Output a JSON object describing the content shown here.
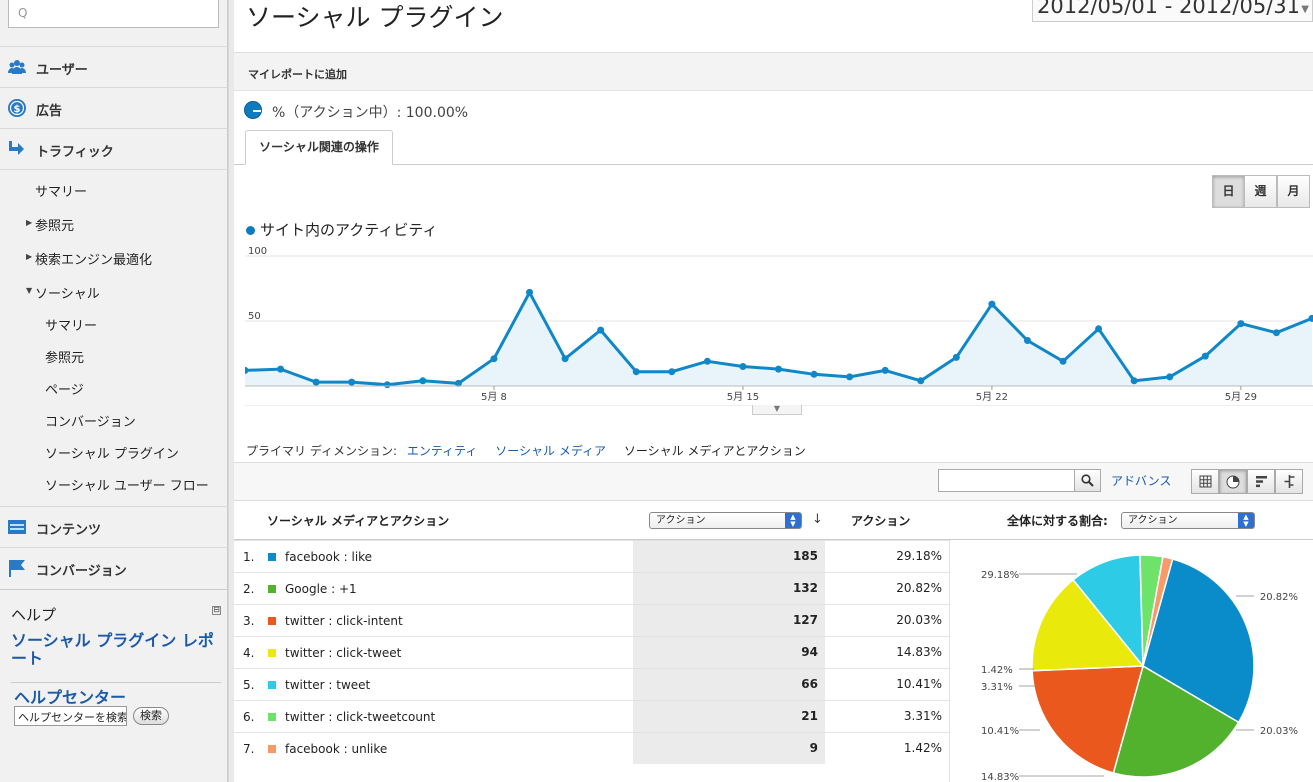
{
  "sidebar": {
    "search_placeholder": "Q",
    "main_items": [
      {
        "label": "ユーザー",
        "icon": "users-icon",
        "color": "#2a79c4"
      },
      {
        "label": "広告",
        "icon": "dollar-icon",
        "color": "#2a79c4"
      },
      {
        "label": "トラフィック",
        "icon": "traffic-arrows-icon",
        "color": "#2a79c4"
      }
    ],
    "traffic_sub": [
      "サマリー",
      "参照元",
      "検索エンジン最適化",
      "ソーシャル"
    ],
    "social_sub": [
      "サマリー",
      "参照元",
      "ページ",
      "コンバージョン",
      "ソーシャル プラグイン",
      "ソーシャル ユーザー フロー"
    ],
    "lower_items": [
      {
        "label": "コンテンツ",
        "icon": "content-icon"
      },
      {
        "label": "コンバージョン",
        "icon": "flag-icon"
      }
    ],
    "help": {
      "title": "ヘルプ",
      "collapse": "⊟",
      "link": "ソーシャル プラグイン レポート",
      "center": "ヘルプセンター",
      "input_value": "ヘルプセンターを検索",
      "search_button": "検索"
    }
  },
  "header": {
    "title": "ソーシャル プラグイン",
    "date_range": "2012/05/01 - 2012/05/31"
  },
  "myreport": "マイレポートに追加",
  "segment": "%（アクション中）: 100.00%",
  "tab": "ソーシャル関連の操作",
  "period_buttons": [
    "日",
    "週",
    "月"
  ],
  "chart_data": {
    "type": "area",
    "title": "サイト内のアクティビティ",
    "yticks": [
      100,
      50
    ],
    "ylim": [
      0,
      100
    ],
    "xticks": [
      "5月 8",
      "5月 15",
      "5月 22",
      "5月 29"
    ],
    "x_start_day": 1,
    "series": [
      {
        "values": [
          12,
          13,
          3,
          3,
          1,
          4,
          2,
          21,
          72,
          21,
          43,
          11,
          11,
          19,
          15,
          13,
          9,
          7,
          12,
          4,
          22,
          63,
          35,
          19,
          44,
          4,
          7,
          23,
          48,
          41,
          52
        ]
      }
    ],
    "color": "#0f87c8",
    "fill": "#e8f3fa"
  },
  "dimensions": {
    "label": "プライマリ ディメンション:",
    "links": [
      "エンティティ",
      "ソーシャル メディア"
    ],
    "current": "ソーシャル メディアとアクション"
  },
  "toolbar": {
    "search_icon": "🔍",
    "advanced": "アドバンス",
    "views": [
      "table-view-icon",
      "pie-view-icon",
      "bar-view-icon",
      "comparison-view-icon"
    ]
  },
  "table": {
    "col1": "ソーシャル メディアとアクション",
    "metric_select": "アクション",
    "col_metric": "アクション",
    "share_label": "全体に対する割合:",
    "share_select": "アクション",
    "rows": [
      {
        "num": "1.",
        "name": "facebook : like",
        "value": "185",
        "pct": "29.18%",
        "color": "#0a8ccb"
      },
      {
        "num": "2.",
        "name": "Google : +1",
        "value": "132",
        "pct": "20.82%",
        "color": "#52b22e"
      },
      {
        "num": "3.",
        "name": "twitter : click-intent",
        "value": "127",
        "pct": "20.03%",
        "color": "#ea581d"
      },
      {
        "num": "4.",
        "name": "twitter : click-tweet",
        "value": "94",
        "pct": "14.83%",
        "color": "#e9ea0c"
      },
      {
        "num": "5.",
        "name": "twitter : tweet",
        "value": "66",
        "pct": "10.41%",
        "color": "#2dcbe5"
      },
      {
        "num": "6.",
        "name": "twitter : click-tweetcount",
        "value": "21",
        "pct": "3.31%",
        "color": "#6ee36a"
      },
      {
        "num": "7.",
        "name": "facebook : unlike",
        "value": "9",
        "pct": "1.42%",
        "color": "#f79a68"
      }
    ]
  },
  "pie_chart": {
    "type": "pie",
    "values": [
      29.18,
      20.82,
      20.03,
      14.83,
      10.41,
      3.31,
      1.42
    ],
    "labels": [
      "29.18%",
      "20.82%",
      "20.03%",
      "14.83%",
      "10.41%",
      "3.31%",
      "1.42%"
    ],
    "colors": [
      "#0a8ccb",
      "#52b22e",
      "#ea581d",
      "#e9ea0c",
      "#2dcbe5",
      "#6ee36a",
      "#f79a68"
    ]
  }
}
